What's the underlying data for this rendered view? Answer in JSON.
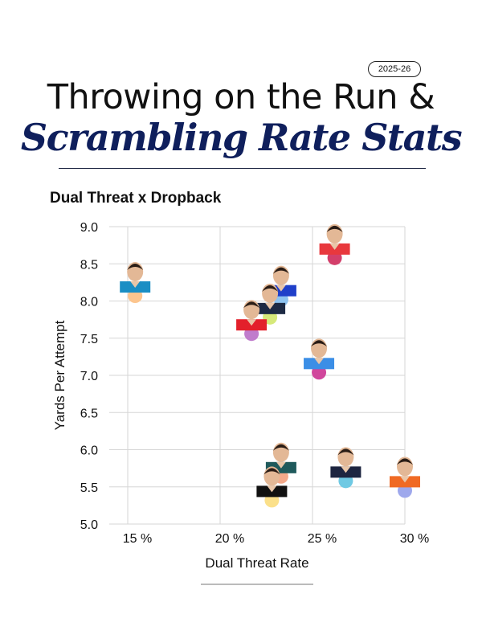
{
  "header": {
    "season_badge": "2025-26",
    "title_line1": "Throwing on the Run &",
    "title_line2": "Scrambling Rate Stats",
    "subtitle": "Dual Threat x Dropback"
  },
  "chart_data": {
    "type": "scatter",
    "title": "Dual Threat x Dropback",
    "xlabel": "Dual Threat Rate",
    "ylabel": "Yards Per Attempt",
    "xlim": [
      15,
      30
    ],
    "ylim": [
      5.0,
      9.0
    ],
    "x_ticks": [
      "15 %",
      "20 %",
      "25 %",
      "30 %"
    ],
    "x_tick_values": [
      15,
      20,
      25,
      30
    ],
    "y_ticks": [
      "9.0",
      "8.5",
      "8.0",
      "7.5",
      "7.0",
      "6.5",
      "6.0",
      "5.5",
      "5.0"
    ],
    "y_tick_values": [
      9.0,
      8.5,
      8.0,
      7.5,
      7.0,
      6.5,
      6.0,
      5.5,
      5.0
    ],
    "grid": true,
    "marker": "player headshot",
    "points": [
      {
        "x": 15.4,
        "y": 8.07,
        "dot_color": "#fcc58e",
        "jersey_color": "#1a8ec4"
      },
      {
        "x": 26.2,
        "y": 8.58,
        "dot_color": "#d33f6a",
        "jersey_color": "#e8383d"
      },
      {
        "x": 23.3,
        "y": 8.02,
        "dot_color": "#8ec3f0",
        "jersey_color": "#1f3fc9"
      },
      {
        "x": 22.7,
        "y": 7.78,
        "dot_color": "#d6e97a",
        "jersey_color": "#1d2a44"
      },
      {
        "x": 21.7,
        "y": 7.56,
        "dot_color": "#c07ccc",
        "jersey_color": "#e3202b"
      },
      {
        "x": 25.35,
        "y": 7.04,
        "dot_color": "#d0469c",
        "jersey_color": "#3b8ee6"
      },
      {
        "x": 23.3,
        "y": 5.64,
        "dot_color": "#f4a98a",
        "jersey_color": "#1f5a5c"
      },
      {
        "x": 22.8,
        "y": 5.32,
        "dot_color": "#fbe08a",
        "jersey_color": "#111111"
      },
      {
        "x": 26.8,
        "y": 5.58,
        "dot_color": "#6fc9e3",
        "jersey_color": "#1d2540"
      },
      {
        "x": 30.0,
        "y": 5.45,
        "dot_color": "#9ea8ec",
        "jersey_color": "#f06a24"
      }
    ]
  }
}
